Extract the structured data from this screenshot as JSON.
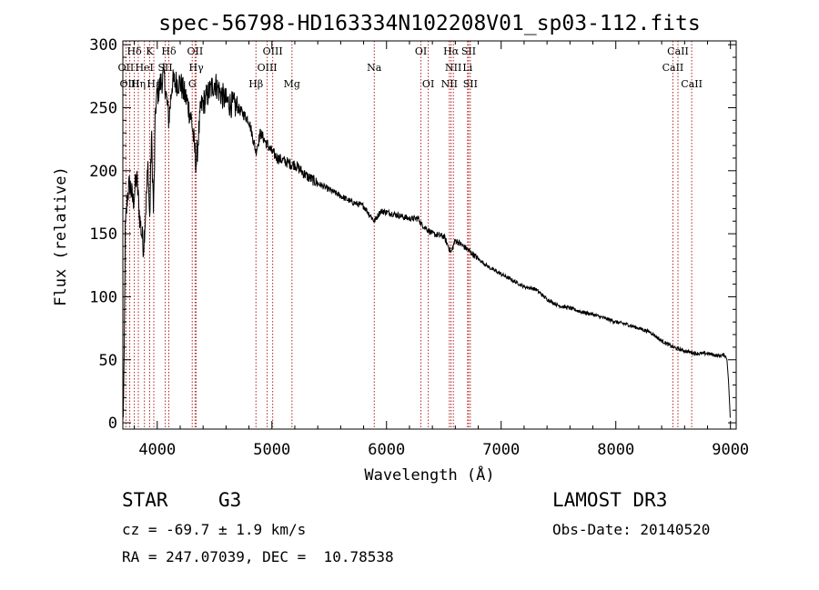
{
  "chart_data": {
    "type": "line",
    "title": "spec-56798-HD163334N102208V01_sp03-112.fits",
    "xlabel": "Wavelength (Å)",
    "ylabel": "Flux (relative)",
    "xlim": [
      3700,
      9050
    ],
    "ylim": [
      -5,
      303
    ],
    "xticks": [
      4000,
      5000,
      6000,
      7000,
      8000,
      9000
    ],
    "yticks": [
      0,
      50,
      100,
      150,
      200,
      250,
      300
    ],
    "grid": false,
    "series": [
      {
        "name": "spectrum",
        "anchors": [
          [
            3700,
            0
          ],
          [
            3710,
            30
          ],
          [
            3720,
            150
          ],
          [
            3740,
            180
          ],
          [
            3760,
            190
          ],
          [
            3790,
            175
          ],
          [
            3820,
            195
          ],
          [
            3850,
            160
          ],
          [
            3880,
            140
          ],
          [
            3900,
            170
          ],
          [
            3920,
            205
          ],
          [
            3934,
            160
          ],
          [
            3950,
            230
          ],
          [
            3968,
            165
          ],
          [
            3985,
            250
          ],
          [
            4000,
            260
          ],
          [
            4030,
            270
          ],
          [
            4060,
            275
          ],
          [
            4101,
            240
          ],
          [
            4130,
            270
          ],
          [
            4200,
            270
          ],
          [
            4260,
            255
          ],
          [
            4300,
            240
          ],
          [
            4340,
            205
          ],
          [
            4380,
            250
          ],
          [
            4450,
            262
          ],
          [
            4500,
            270
          ],
          [
            4550,
            262
          ],
          [
            4600,
            255
          ],
          [
            4700,
            250
          ],
          [
            4800,
            240
          ],
          [
            4861,
            215
          ],
          [
            4900,
            230
          ],
          [
            4950,
            222
          ],
          [
            5000,
            215
          ],
          [
            5050,
            210
          ],
          [
            5100,
            208
          ],
          [
            5172,
            205
          ],
          [
            5200,
            205
          ],
          [
            5300,
            196
          ],
          [
            5400,
            190
          ],
          [
            5500,
            185
          ],
          [
            5600,
            180
          ],
          [
            5700,
            175
          ],
          [
            5800,
            172
          ],
          [
            5893,
            160
          ],
          [
            5950,
            168
          ],
          [
            6050,
            166
          ],
          [
            6200,
            162
          ],
          [
            6280,
            162
          ],
          [
            6300,
            158
          ],
          [
            6400,
            150
          ],
          [
            6500,
            148
          ],
          [
            6563,
            135
          ],
          [
            6600,
            145
          ],
          [
            6700,
            138
          ],
          [
            6800,
            130
          ],
          [
            6900,
            123
          ],
          [
            7000,
            118
          ],
          [
            7100,
            113
          ],
          [
            7200,
            108
          ],
          [
            7300,
            106
          ],
          [
            7400,
            98
          ],
          [
            7500,
            93
          ],
          [
            7600,
            91
          ],
          [
            7700,
            88
          ],
          [
            7800,
            86
          ],
          [
            7900,
            83
          ],
          [
            8000,
            80
          ],
          [
            8100,
            78
          ],
          [
            8200,
            75
          ],
          [
            8300,
            72
          ],
          [
            8400,
            65
          ],
          [
            8500,
            60
          ],
          [
            8600,
            57
          ],
          [
            8700,
            55
          ],
          [
            8800,
            55
          ],
          [
            8900,
            53
          ],
          [
            8950,
            54
          ],
          [
            8970,
            50
          ],
          [
            8985,
            30
          ],
          [
            9000,
            0
          ]
        ]
      }
    ],
    "features": [
      {
        "label": "Hδ",
        "wave": 3800,
        "row": 0
      },
      {
        "label": "K",
        "wave": 3934,
        "row": 0
      },
      {
        "label": "Hδ",
        "wave": 4101,
        "row": 0
      },
      {
        "label": "OII",
        "wave": 4330,
        "row": 0
      },
      {
        "label": "OIII",
        "wave": 5007,
        "row": 0
      },
      {
        "label": "OI",
        "wave": 6300,
        "row": 0
      },
      {
        "label": "Hα",
        "wave": 6563,
        "row": 0
      },
      {
        "label": "SII",
        "wave": 6716,
        "row": 0
      },
      {
        "label": "CaII",
        "wave": 8542,
        "row": 0
      },
      {
        "label": "OII",
        "wave": 3727,
        "row": 1
      },
      {
        "label": "HeI",
        "wave": 3888,
        "row": 1
      },
      {
        "label": "SII",
        "wave": 4070,
        "row": 1
      },
      {
        "label": "Hγ",
        "wave": 4340,
        "row": 1
      },
      {
        "label": "OIII",
        "wave": 4959,
        "row": 1
      },
      {
        "label": "Na",
        "wave": 5893,
        "row": 1
      },
      {
        "label": "NII",
        "wave": 6583,
        "row": 1
      },
      {
        "label": "Li",
        "wave": 6707,
        "row": 1
      },
      {
        "label": "CaII",
        "wave": 8498,
        "row": 1
      },
      {
        "label": "OIII",
        "wave": 3760,
        "row": 2
      },
      {
        "label": "Hη",
        "wave": 3835,
        "row": 2
      },
      {
        "label": "Hε",
        "wave": 3970,
        "row": 2
      },
      {
        "label": "G",
        "wave": 4305,
        "row": 2
      },
      {
        "label": "Hβ",
        "wave": 4861,
        "row": 2
      },
      {
        "label": "Mg",
        "wave": 5175,
        "row": 2
      },
      {
        "label": "OI",
        "wave": 6364,
        "row": 2
      },
      {
        "label": "NII",
        "wave": 6548,
        "row": 2
      },
      {
        "label": "SII",
        "wave": 6731,
        "row": 2
      },
      {
        "label": "CaII",
        "wave": 8662,
        "row": 2
      }
    ]
  },
  "info": {
    "object_class": "STAR",
    "subclass": "G3",
    "survey": "LAMOST DR3",
    "redshift": "cz = -69.7 ± 1.9 km/s",
    "obs_date": "Obs-Date: 20140520",
    "coords": "RA = 247.07039, DEC =  10.78538"
  }
}
